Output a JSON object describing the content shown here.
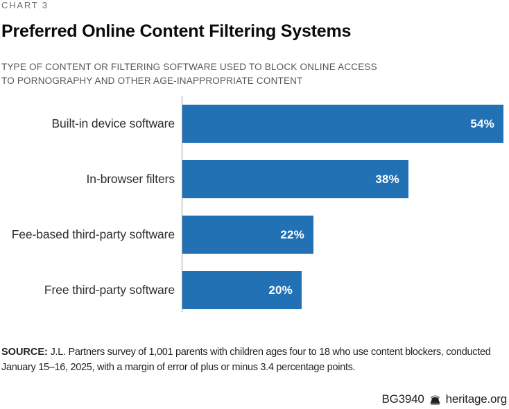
{
  "header": {
    "eyebrow": "CHART 3",
    "title": "Preferred Online Content Filtering Systems",
    "subtitle_line1": "TYPE OF CONTENT OR FILTERING SOFTWARE USED TO BLOCK ONLINE ACCESS",
    "subtitle_line2": "TO PORNOGRAPHY AND OTHER AGE-INAPPROPRIATE CONTENT"
  },
  "chart_data": {
    "type": "bar",
    "orientation": "horizontal",
    "title": "Preferred Online Content Filtering Systems",
    "categories": [
      "Built-in device software",
      "In-browser filters",
      "Fee-based third-party software",
      "Free third-party software"
    ],
    "values": [
      54,
      38,
      22,
      20
    ],
    "value_labels": [
      "54%",
      "38%",
      "22%",
      "20%"
    ],
    "unit": "percent",
    "xlim": [
      0,
      55
    ],
    "grid": false,
    "legend": false,
    "bar_color": "#2271b5",
    "value_label_color": "#ffffff",
    "axis_line_color": "#9d9fa2"
  },
  "footer": {
    "source_label": "SOURCE:",
    "source_text": " J.L. Partners survey of 1,001 parents with children ages four to 18 who use content blockers, conducted January 15–16, 2025, with a margin of error of plus or minus 3.4 percentage points.",
    "doc_id": "BG3940",
    "site": "heritage.org",
    "bell_icon_color": "#231f20"
  }
}
